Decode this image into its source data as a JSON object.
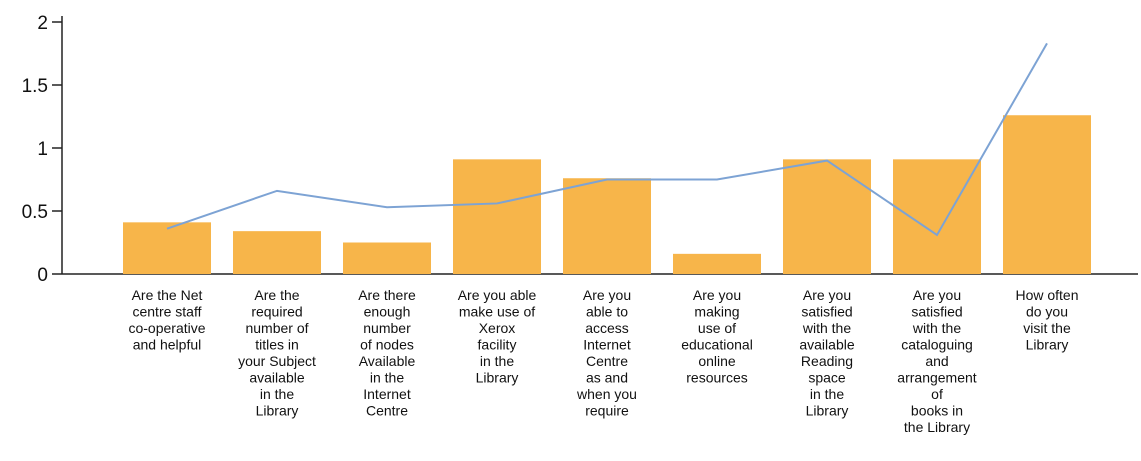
{
  "chart_data": {
    "type": "bar",
    "title": "",
    "xlabel": "",
    "ylabel": "",
    "ylim": [
      0,
      2
    ],
    "yticks": [
      "0",
      "0.5",
      "1",
      "1.5",
      "2"
    ],
    "grid": false,
    "legend": "none",
    "categories": [
      [
        "Are the Net",
        "centre staff",
        "co-operative",
        "and helpful"
      ],
      [
        "Are the",
        "required",
        "number of",
        "titles in",
        "your Subject",
        "available",
        "in the",
        "Library"
      ],
      [
        "Are there",
        "enough",
        "number",
        "of nodes",
        "Available",
        "in the",
        "Internet",
        "Centre"
      ],
      [
        "Are you able",
        "make use of",
        "Xerox",
        "facility",
        "in the",
        "Library"
      ],
      [
        "Are you",
        "able to",
        "access",
        "Internet",
        "Centre",
        "as and",
        "when you",
        "require"
      ],
      [
        "Are you",
        "making",
        "use of",
        "educational",
        "online",
        "resources"
      ],
      [
        "Are you",
        "satisfied",
        "with the",
        "available",
        "Reading",
        "space",
        "in the",
        "Library"
      ],
      [
        "Are you",
        "satisfied",
        "with the",
        "cataloguing",
        "and",
        "arrangement",
        "of",
        "books in",
        "the Library"
      ],
      [
        "How often",
        "do you",
        "visit the",
        "Library"
      ]
    ],
    "series": [
      {
        "type": "bar",
        "values": [
          0.41,
          0.34,
          0.25,
          0.91,
          0.76,
          0.16,
          0.91,
          0.91,
          1.26
        ],
        "color": "#f7b54a"
      },
      {
        "type": "line",
        "values": [
          0.36,
          0.66,
          0.53,
          0.56,
          0.75,
          0.75,
          0.9,
          0.31,
          1.83
        ],
        "color": "#7da3d4"
      }
    ]
  }
}
